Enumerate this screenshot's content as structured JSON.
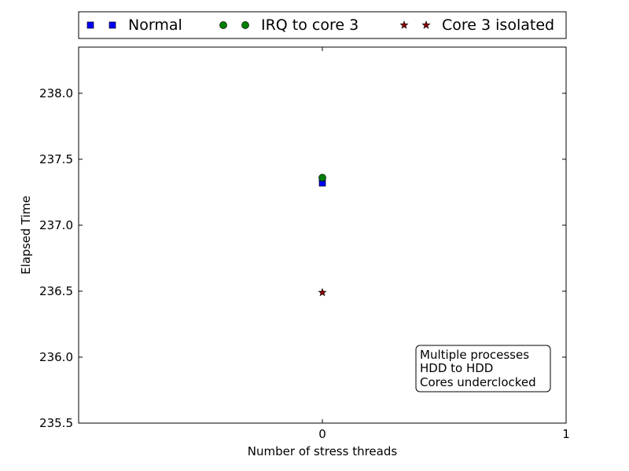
{
  "chart_data": {
    "type": "scatter",
    "xlabel": "Number of stress threads",
    "ylabel": "Elapsed Time",
    "xlim": [
      -1,
      1
    ],
    "ylim": [
      235.5,
      238.35
    ],
    "xticks": [
      0,
      1
    ],
    "xtick_labels": [
      "0",
      "1"
    ],
    "yticks": [
      235.5,
      236.0,
      236.5,
      237.0,
      237.5,
      238.0
    ],
    "ytick_labels": [
      "235.5",
      "236.0",
      "236.5",
      "237.0",
      "237.5",
      "238.0"
    ],
    "grid": false,
    "legend_position": "top, outside plot",
    "series": [
      {
        "name": "Normal",
        "marker": "square",
        "color": "#0000ff",
        "x": [
          0
        ],
        "y": [
          237.32
        ]
      },
      {
        "name": "IRQ to core 3",
        "marker": "circle",
        "color": "#008000",
        "x": [
          0
        ],
        "y": [
          237.36
        ]
      },
      {
        "name": "Core 3 isolated",
        "marker": "star",
        "color": "#8b0000",
        "x": [
          0
        ],
        "y": [
          236.49
        ]
      }
    ],
    "annotation": {
      "lines": [
        "Multiple processes",
        "HDD to HDD",
        "Cores underclocked"
      ],
      "position": "lower-right"
    }
  }
}
